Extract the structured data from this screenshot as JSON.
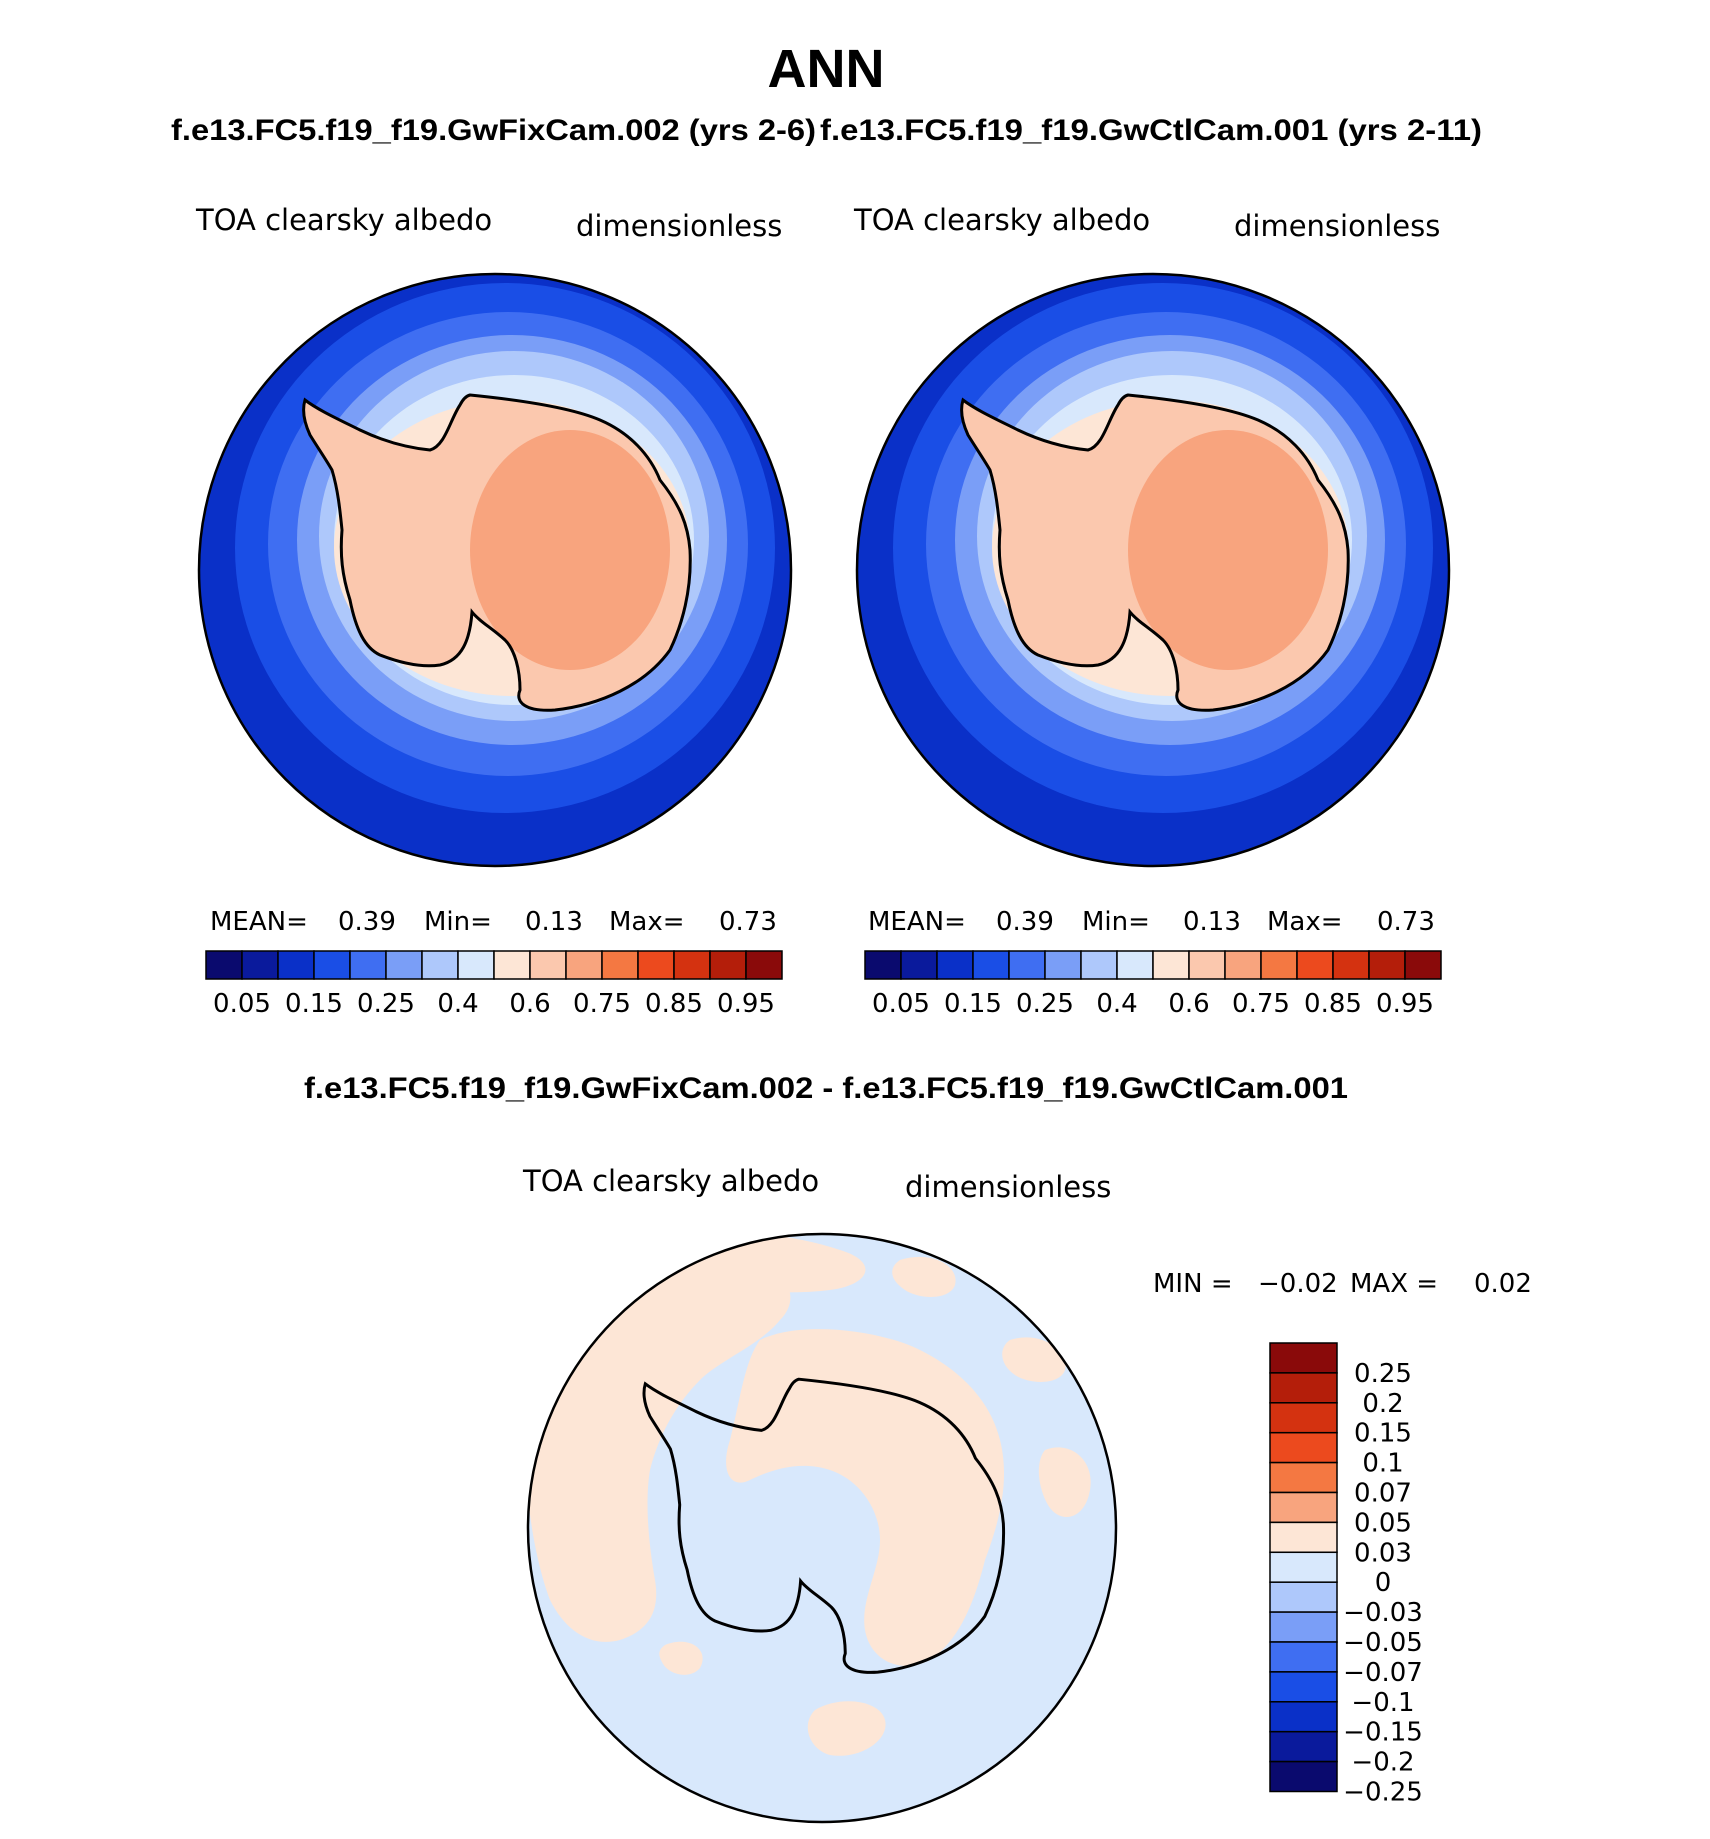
{
  "title": "ANN",
  "panels_header": {
    "left_case": "f.e13.FC5.f19_f19.GwFixCam.002 (yrs 2-6)",
    "right_case": "f.e13.FC5.f19_f19.GwCtlCam.001 (yrs 2-11)"
  },
  "diff_header": "f.e13.FC5.f19_f19.GwFixCam.002 - f.e13.FC5.f19_f19.GwCtlCam.001",
  "chart_data": [
    {
      "type": "heatmap",
      "projection": "south polar stereographic",
      "variable": "TOA clearsky albedo",
      "units": "dimensionless",
      "stats": {
        "mean_label": "MEAN=",
        "mean": "0.39",
        "min_label": "Min=",
        "min": "0.13",
        "max_label": "Max=",
        "max": "0.73"
      },
      "colorbar_orientation": "horizontal",
      "colorbar_colors": [
        "#0a0a6e",
        "#0a1a9c",
        "#0a30c8",
        "#1a4ee6",
        "#3f6ef2",
        "#7a9ef7",
        "#aec8fb",
        "#d8e8fc",
        "#fde6d6",
        "#fbc8ae",
        "#f8a47e",
        "#f47842",
        "#ec4a1e",
        "#d43210",
        "#b41e0a",
        "#8a0a0a"
      ],
      "colorbar_tick_labels": [
        "0.05",
        "0.15",
        "0.25",
        "0.4",
        "0.6",
        "0.75",
        "0.85",
        "0.95"
      ],
      "colorbar_levels": [
        0.05,
        0.1,
        0.15,
        0.2,
        0.25,
        0.3,
        0.4,
        0.5,
        0.6,
        0.7,
        0.75,
        0.8,
        0.85,
        0.9,
        0.95
      ]
    },
    {
      "type": "heatmap",
      "projection": "south polar stereographic",
      "variable": "TOA clearsky albedo",
      "units": "dimensionless",
      "stats": {
        "mean_label": "MEAN=",
        "mean": "0.39",
        "min_label": "Min=",
        "min": "0.13",
        "max_label": "Max=",
        "max": "0.73"
      },
      "colorbar_orientation": "horizontal",
      "colorbar_colors": [
        "#0a0a6e",
        "#0a1a9c",
        "#0a30c8",
        "#1a4ee6",
        "#3f6ef2",
        "#7a9ef7",
        "#aec8fb",
        "#d8e8fc",
        "#fde6d6",
        "#fbc8ae",
        "#f8a47e",
        "#f47842",
        "#ec4a1e",
        "#d43210",
        "#b41e0a",
        "#8a0a0a"
      ],
      "colorbar_tick_labels": [
        "0.05",
        "0.15",
        "0.25",
        "0.4",
        "0.6",
        "0.75",
        "0.85",
        "0.95"
      ],
      "colorbar_levels": [
        0.05,
        0.1,
        0.15,
        0.2,
        0.25,
        0.3,
        0.4,
        0.5,
        0.6,
        0.7,
        0.75,
        0.8,
        0.85,
        0.9,
        0.95
      ]
    },
    {
      "type": "heatmap",
      "projection": "south polar stereographic",
      "variable": "TOA clearsky albedo",
      "units": "dimensionless",
      "stats": {
        "min_label": "MIN =",
        "min": "−0.02",
        "max_label": "MAX =",
        "max": "0.02"
      },
      "colorbar_orientation": "vertical",
      "colorbar_colors": [
        "#8a0a0a",
        "#b41e0a",
        "#d43210",
        "#ec4a1e",
        "#f47842",
        "#f8a47e",
        "#fde6d6",
        "#d8e8fc",
        "#aec8fb",
        "#7a9ef7",
        "#3f6ef2",
        "#1a4ee6",
        "#0a30c8",
        "#0a1a9c",
        "#0a0a6e"
      ],
      "colorbar_tick_labels": [
        "0.25",
        "0.2",
        "0.15",
        "0.1",
        "0.07",
        "0.05",
        "0.03",
        "0",
        "−0.03",
        "−0.05",
        "−0.07",
        "−0.1",
        "−0.15",
        "−0.2",
        "−0.25"
      ],
      "colorbar_levels": [
        0.25,
        0.2,
        0.15,
        0.1,
        0.07,
        0.05,
        0.03,
        0,
        -0.03,
        -0.05,
        -0.07,
        -0.1,
        -0.15,
        -0.2,
        -0.25
      ]
    }
  ]
}
